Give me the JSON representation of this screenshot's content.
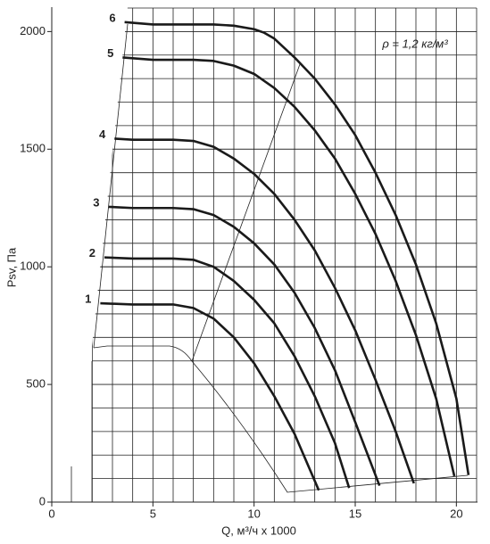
{
  "chart_data": {
    "type": "line",
    "annotation": "ρ = 1,2 кг/м³",
    "x_label": "Q, м³/ч x 1000",
    "y_label": "Psv, Па",
    "xlim": [
      0,
      21
    ],
    "ylim": [
      0,
      2100
    ],
    "xticks": [
      0,
      5,
      10,
      15,
      20
    ],
    "yticks": [
      0,
      500,
      1000,
      1500,
      2000
    ],
    "grid": true,
    "series": [
      {
        "name": "1",
        "color": "#1a1a1a",
        "x": [
          2.4,
          4,
          6,
          7,
          8,
          9,
          10,
          11,
          12,
          13.2
        ],
        "values": [
          845,
          840,
          840,
          825,
          780,
          700,
          590,
          450,
          290,
          50
        ]
      },
      {
        "name": "2",
        "color": "#1a1a1a",
        "x": [
          2.6,
          4,
          6,
          7,
          8,
          9,
          10,
          11,
          12,
          13,
          14,
          14.7
        ],
        "values": [
          1040,
          1035,
          1035,
          1030,
          1000,
          940,
          860,
          760,
          620,
          450,
          250,
          60
        ]
      },
      {
        "name": "3",
        "color": "#1a1a1a",
        "x": [
          2.8,
          4,
          6,
          7,
          8,
          9,
          10,
          11,
          12,
          13,
          14,
          15,
          16.2
        ],
        "values": [
          1255,
          1250,
          1250,
          1245,
          1220,
          1170,
          1100,
          1010,
          890,
          740,
          560,
          340,
          70
        ]
      },
      {
        "name": "4",
        "color": "#1a1a1a",
        "x": [
          3.1,
          4,
          6,
          7,
          8,
          9,
          10,
          11,
          12,
          13,
          14,
          15,
          16,
          17,
          17.9
        ],
        "values": [
          1545,
          1540,
          1540,
          1535,
          1510,
          1460,
          1395,
          1310,
          1200,
          1070,
          910,
          730,
          520,
          300,
          80
        ]
      },
      {
        "name": "5",
        "color": "#1a1a1a",
        "x": [
          3.5,
          5,
          7,
          8,
          9,
          10,
          11,
          12,
          13,
          14,
          15,
          16,
          17,
          18,
          19,
          19.9
        ],
        "values": [
          1890,
          1880,
          1880,
          1875,
          1855,
          1820,
          1760,
          1680,
          1580,
          1460,
          1310,
          1140,
          940,
          710,
          440,
          110
        ]
      },
      {
        "name": "6",
        "color": "#1a1a1a",
        "x": [
          3.6,
          5,
          7,
          8,
          9,
          10,
          10.5,
          11,
          12,
          13,
          14,
          15,
          16,
          17,
          18,
          19,
          20,
          20.6
        ],
        "values": [
          2040,
          2030,
          2030,
          2030,
          2025,
          2010,
          1995,
          1970,
          1890,
          1800,
          1690,
          1560,
          1400,
          1220,
          1010,
          760,
          440,
          115
        ]
      }
    ]
  }
}
